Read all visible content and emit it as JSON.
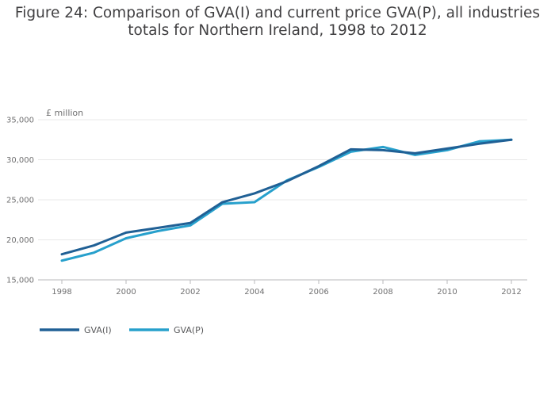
{
  "title_line1": "Figure 24: Comparison of GVA(I) and current price GVA(P), all industries",
  "title_line2": "totals for Northern Ireland, 1998 to 2012",
  "chart_data": {
    "type": "line",
    "title": "Figure 24: Comparison of GVA(I) and current price GVA(P), all industries totals for Northern Ireland, 1998 to 2012",
    "ylabel": "£ million",
    "xlabel": "",
    "x": [
      1998,
      1999,
      2000,
      2001,
      2002,
      2003,
      2004,
      2005,
      2006,
      2007,
      2008,
      2009,
      2010,
      2011,
      2012
    ],
    "x_ticks": [
      "1998",
      "2000",
      "2002",
      "2004",
      "2006",
      "2008",
      "2010",
      "2012"
    ],
    "y_ticks": [
      "15,000",
      "20,000",
      "25,000",
      "30,000",
      "35,000"
    ],
    "ylim": [
      15000,
      35000
    ],
    "xlim": [
      1998,
      2012
    ],
    "grid": "horizontal",
    "legend_position": "bottom-left",
    "series": [
      {
        "name": "GVA(I)",
        "color": "#206095",
        "values": [
          18200,
          19300,
          20900,
          21500,
          22100,
          24700,
          25800,
          27300,
          29200,
          31300,
          31200,
          30800,
          31400,
          32000,
          32500
        ]
      },
      {
        "name": "GVA(P)",
        "color": "#27a0cc",
        "values": [
          17400,
          18400,
          20200,
          21100,
          21800,
          24500,
          24700,
          27400,
          29100,
          31000,
          31600,
          30600,
          31200,
          32300,
          32500
        ]
      }
    ]
  }
}
